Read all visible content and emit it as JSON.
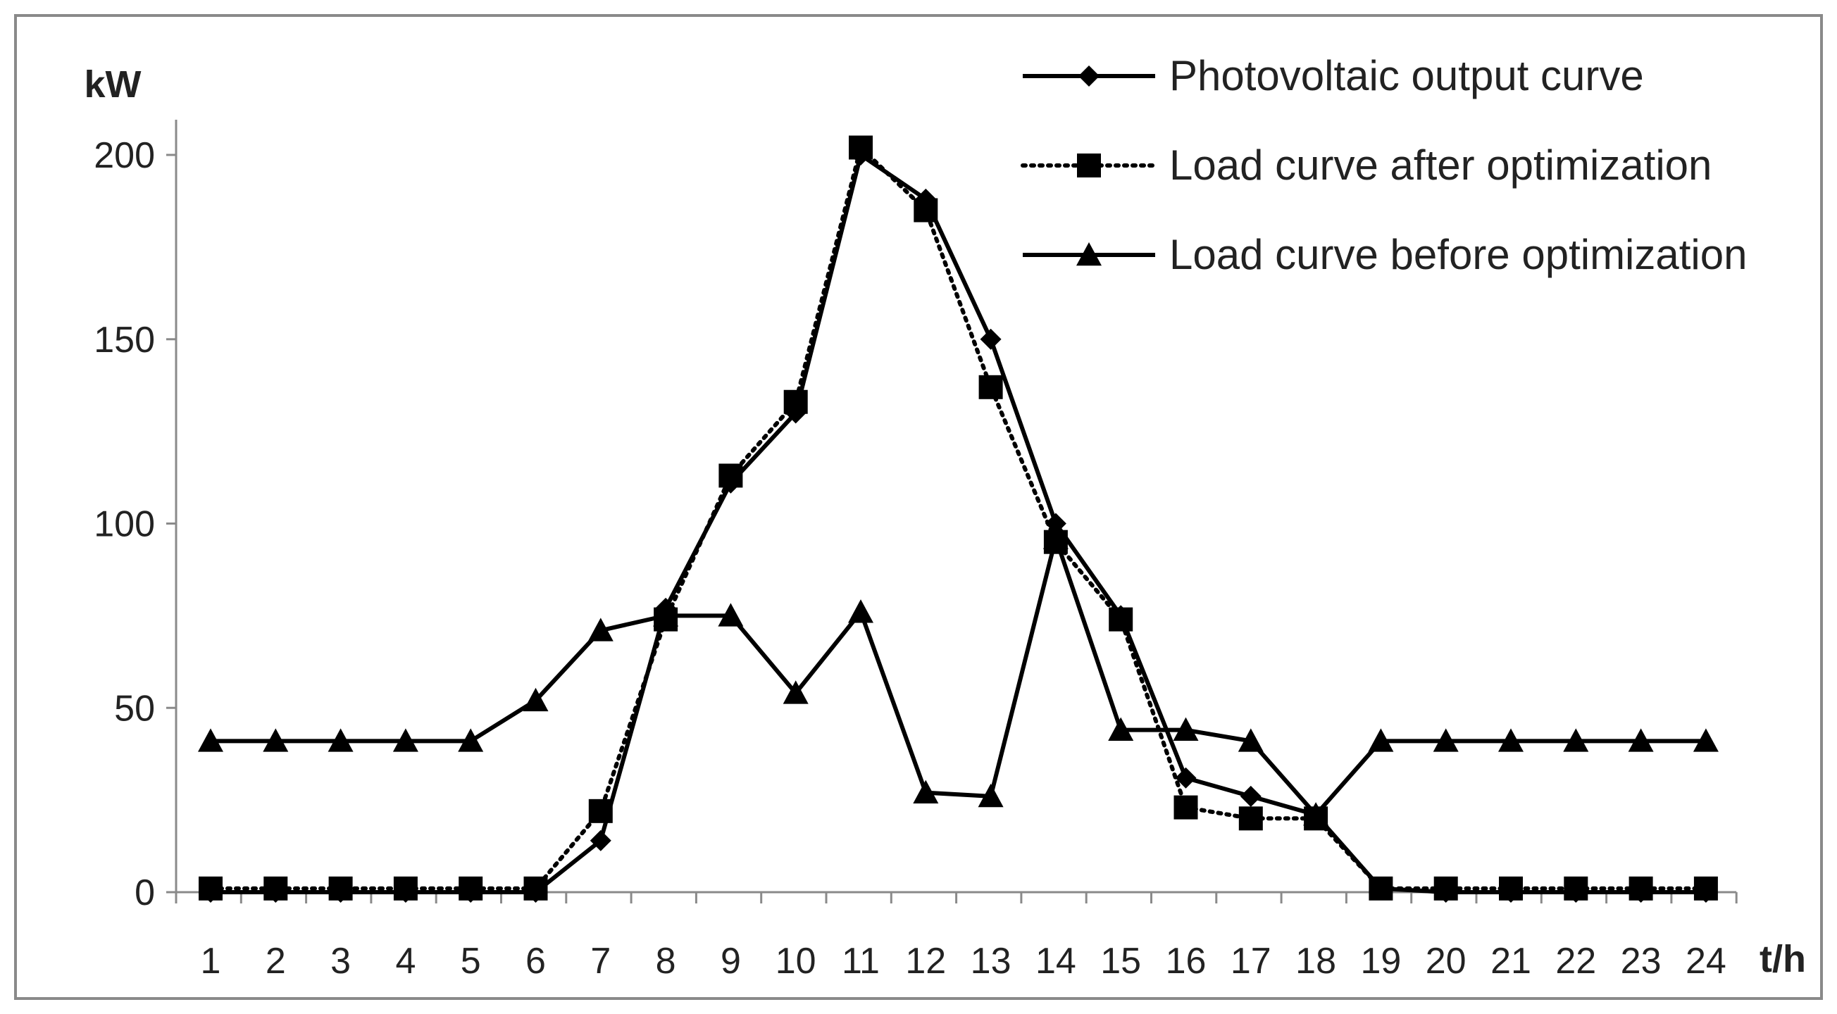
{
  "chart_data": {
    "type": "line",
    "ylabel": "kW",
    "xlabel": "t/h",
    "ylim": [
      0,
      200
    ],
    "yticks": [
      0,
      50,
      100,
      150,
      200
    ],
    "grid": false,
    "legend_position": "top-right",
    "x": [
      1,
      2,
      3,
      4,
      5,
      6,
      7,
      8,
      9,
      10,
      11,
      12,
      13,
      14,
      15,
      16,
      17,
      18,
      19,
      20,
      21,
      22,
      23,
      24
    ],
    "series": [
      {
        "name": "Photovoltaic output curve",
        "marker": "diamond",
        "line": "solid",
        "color": "#000000",
        "values": [
          0,
          0,
          0,
          0,
          0,
          0,
          14,
          77,
          111,
          130,
          200,
          188,
          150,
          100,
          75,
          31,
          26,
          21,
          1,
          0,
          0,
          0,
          0,
          0
        ]
      },
      {
        "name": "Load curve after optimization",
        "marker": "square",
        "line": "dotted",
        "color": "#000000",
        "values": [
          1,
          1,
          1,
          1,
          1,
          1,
          22,
          74,
          113,
          133,
          202,
          185,
          137,
          95,
          74,
          23,
          20,
          20,
          1,
          1,
          1,
          1,
          1,
          1
        ]
      },
      {
        "name": "Load curve before optimization",
        "marker": "triangle",
        "line": "solid",
        "color": "#000000",
        "values": [
          41,
          41,
          41,
          41,
          41,
          52,
          71,
          75,
          75,
          54,
          76,
          27,
          26,
          96,
          44,
          44,
          41,
          21,
          41,
          41,
          41,
          41,
          41,
          41
        ]
      }
    ]
  }
}
